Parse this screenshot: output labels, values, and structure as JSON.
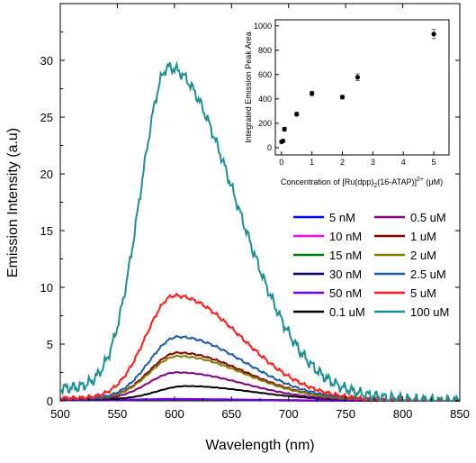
{
  "chart_data": [
    {
      "type": "line",
      "xlabel": "Wavelength (nm)",
      "ylabel": "Emission Intensity (a.u)",
      "xlim": [
        500,
        850
      ],
      "ylim": [
        0,
        35
      ],
      "xticks": [
        500,
        550,
        600,
        650,
        700,
        750,
        800,
        850
      ],
      "yticks": [
        0,
        5,
        10,
        15,
        20,
        25,
        30
      ],
      "grid": false,
      "legend_position": "right",
      "series": [
        {
          "name": "5 nM",
          "color": "#0000ff",
          "peak": 0.05,
          "peak_x": 600,
          "baseline": 0.05
        },
        {
          "name": "10 nM",
          "color": "#ff00ff",
          "peak": 0.06,
          "peak_x": 600,
          "baseline": 0.06
        },
        {
          "name": "15 nM",
          "color": "#008000",
          "peak": 0.07,
          "peak_x": 600,
          "baseline": 0.07
        },
        {
          "name": "30 nM",
          "color": "#000080",
          "peak": 0.08,
          "peak_x": 600,
          "baseline": 0.08
        },
        {
          "name": "50 nM",
          "color": "#7b00d4",
          "peak": 0.1,
          "peak_x": 600,
          "baseline": 0.1
        },
        {
          "name": "0.1 uM",
          "color": "#000000",
          "peak": 1.2,
          "peak_x": 610,
          "baseline": 0.15
        },
        {
          "name": "0.5 uM",
          "color": "#800080",
          "peak": 2.4,
          "peak_x": 602,
          "baseline": 0.15
        },
        {
          "name": "1 uM",
          "color": "#800000",
          "peak": 4.1,
          "peak_x": 603,
          "baseline": 0.2
        },
        {
          "name": "2 uM",
          "color": "#808000",
          "peak": 3.8,
          "peak_x": 603,
          "baseline": 0.2
        },
        {
          "name": "2.5 uM",
          "color": "#1f5ca8",
          "peak": 5.5,
          "peak_x": 603,
          "baseline": 0.2
        },
        {
          "name": "5 uM",
          "color": "#ff1a1a",
          "peak": 9.1,
          "peak_x": 600,
          "baseline": 0.25
        },
        {
          "name": "100 uM",
          "color": "#1f8f8f",
          "peak": 28.6,
          "peak_x": 595,
          "baseline": 1.1
        }
      ]
    },
    {
      "type": "scatter",
      "xlabel_prefix": "Concentration of [Ru(dpp)",
      "xlabel_sub1": "2",
      "xlabel_mid": "(16-ATAP)]",
      "xlabel_sup": "2+",
      "xlabel_unit": " (μM)",
      "ylabel": "Integrated Emission Peak Area",
      "xlim": [
        -0.2,
        5.5
      ],
      "ylim": [
        -60,
        1050
      ],
      "xticks": [
        0,
        1,
        2,
        3,
        4,
        5
      ],
      "yticks": [
        0,
        200,
        400,
        600,
        800,
        1000
      ],
      "points": [
        {
          "x": 0.005,
          "y": 48,
          "err": 10
        },
        {
          "x": 0.05,
          "y": 55,
          "err": 10
        },
        {
          "x": 0.1,
          "y": 152,
          "err": 15
        },
        {
          "x": 0.5,
          "y": 275,
          "err": 15
        },
        {
          "x": 1.0,
          "y": 445,
          "err": 18
        },
        {
          "x": 2.0,
          "y": 415,
          "err": 15
        },
        {
          "x": 2.5,
          "y": 578,
          "err": 28
        },
        {
          "x": 5.0,
          "y": 933,
          "err": 38
        }
      ]
    }
  ]
}
